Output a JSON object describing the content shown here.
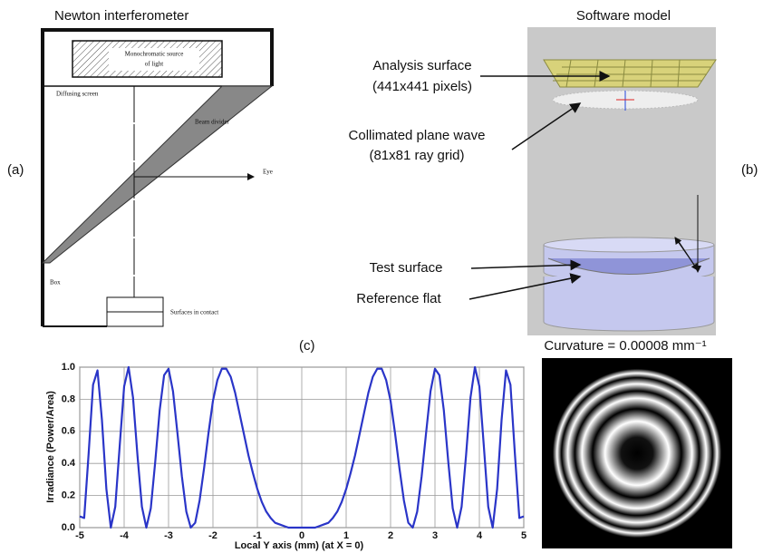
{
  "panels": {
    "a": {
      "label": "(a)",
      "title": "Newton interferometer",
      "labels": {
        "source_1": "Monochromatic source",
        "source_2": "of light",
        "screen": "Diffusing screen",
        "divider": "Beam divider",
        "eye": "Eye",
        "box": "Box",
        "contact": "Surfaces in contact"
      }
    },
    "b": {
      "label": "(b)",
      "title": "Software model",
      "labels": {
        "analysis_1": "Analysis surface",
        "analysis_2": "(441x441 pixels)",
        "wave_1": "Collimated plane wave",
        "wave_2": "(81x81 ray grid)",
        "test": "Test surface",
        "reference": "Reference flat"
      }
    },
    "c": {
      "label": "(c)",
      "caption": "Curvature = 0.00008 mm⁻¹"
    }
  },
  "chart_data": {
    "type": "line",
    "x_label": "Local Y axis (mm) (at X = 0)",
    "y_label": "Irradiance (Power/Area)",
    "color": "#2a35c8",
    "grid": true,
    "x": [
      -5,
      -4.9,
      -4.8,
      -4.7,
      -4.6,
      -4.5,
      -4.4,
      -4.3,
      -4.2,
      -4.1,
      -4,
      -3.9,
      -3.8,
      -3.7,
      -3.6,
      -3.5,
      -3.4,
      -3.3,
      -3.2,
      -3.1,
      -3,
      -2.9,
      -2.8,
      -2.7,
      -2.6,
      -2.5,
      -2.4,
      -2.3,
      -2.2,
      -2.1,
      -2,
      -1.9,
      -1.8,
      -1.7,
      -1.6,
      -1.5,
      -1.4,
      -1.3,
      -1.2,
      -1.1,
      -1,
      -0.9,
      -0.8,
      -0.7,
      -0.6,
      -0.5,
      -0.4,
      -0.3,
      -0.2,
      -0.1,
      0,
      0.1,
      0.2,
      0.3,
      0.4,
      0.5,
      0.6,
      0.7,
      0.8,
      0.9,
      1,
      1.1,
      1.2,
      1.3,
      1.4,
      1.5,
      1.6,
      1.7,
      1.8,
      1.9,
      2,
      2.1,
      2.2,
      2.3,
      2.4,
      2.5,
      2.6,
      2.7,
      2.8,
      2.9,
      3,
      3.1,
      3.2,
      3.3,
      3.4,
      3.5,
      3.6,
      3.7,
      3.8,
      3.9,
      4,
      4.1,
      4.2,
      4.3,
      4.4,
      4.5,
      4.6,
      4.7,
      4.8,
      4.9,
      5
    ],
    "values": [
      0.07,
      0.06,
      0.46,
      0.89,
      0.98,
      0.67,
      0.24,
      0,
      0.13,
      0.51,
      0.88,
      1,
      0.81,
      0.45,
      0.13,
      0,
      0.12,
      0.41,
      0.73,
      0.95,
      0.99,
      0.85,
      0.59,
      0.32,
      0.1,
      0,
      0.03,
      0.17,
      0.37,
      0.59,
      0.79,
      0.92,
      0.99,
      0.99,
      0.94,
      0.84,
      0.71,
      0.58,
      0.45,
      0.34,
      0.24,
      0.16,
      0.1,
      0.06,
      0.03,
      0.02,
      0.01,
      0,
      0,
      0,
      0,
      0,
      0,
      0,
      0.01,
      0.02,
      0.03,
      0.06,
      0.1,
      0.16,
      0.24,
      0.34,
      0.45,
      0.58,
      0.71,
      0.84,
      0.94,
      0.99,
      0.99,
      0.92,
      0.79,
      0.59,
      0.37,
      0.17,
      0.03,
      0,
      0.1,
      0.32,
      0.59,
      0.85,
      0.99,
      0.95,
      0.73,
      0.41,
      0.12,
      0,
      0.13,
      0.45,
      0.81,
      1,
      0.88,
      0.51,
      0.13,
      0,
      0.24,
      0.67,
      0.98,
      0.89,
      0.46,
      0.06,
      0.07
    ],
    "xlim": [
      -5,
      5
    ],
    "xticks": [
      -5,
      -4,
      -3,
      -2,
      -1,
      0,
      1,
      2,
      3,
      4,
      5
    ],
    "ylim": [
      0,
      1
    ],
    "yticks": [
      {
        "value": 0,
        "label": "0.0"
      },
      0.2,
      0.4,
      0.6,
      0.8,
      {
        "value": 1,
        "label": "1.0"
      }
    ]
  }
}
